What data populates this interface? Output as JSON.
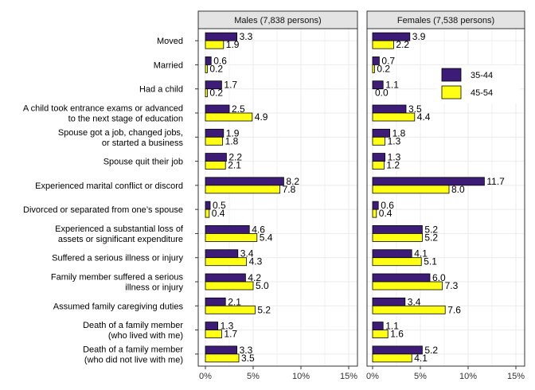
{
  "chart_data": {
    "type": "bar",
    "orientation": "horizontal",
    "categories": [
      [
        "Moved"
      ],
      [
        "Married"
      ],
      [
        "Had a child"
      ],
      [
        "A child took entrance exams or advanced",
        "to the next stage of education"
      ],
      [
        "Spouse got a job, changed jobs,",
        "or started a business"
      ],
      [
        "Spouse quit their job"
      ],
      [
        "Experienced marital conflict or discord"
      ],
      [
        "Divorced or separated from one’s spouse"
      ],
      [
        "Experienced a substantial loss of",
        "assets or significant expenditure"
      ],
      [
        "Suffered a serious illness or injury"
      ],
      [
        "Family member suffered a serious",
        "illness or injury"
      ],
      [
        "Assumed family caregiving duties"
      ],
      [
        "Death of a family member",
        "(who lived with me)"
      ],
      [
        "Death of a family member",
        "(who did not live with me)"
      ]
    ],
    "panels": [
      {
        "title": "Males (7,838 persons)",
        "series": [
          {
            "name": "35-44",
            "values": [
              3.3,
              0.6,
              1.7,
              2.5,
              1.9,
              2.2,
              8.2,
              0.5,
              4.6,
              3.4,
              4.2,
              2.1,
              1.3,
              3.3
            ]
          },
          {
            "name": "45-54",
            "values": [
              1.9,
              0.2,
              0.2,
              4.9,
              1.8,
              2.1,
              7.8,
              0.4,
              5.4,
              4.3,
              5.0,
              5.2,
              1.7,
              3.5
            ]
          }
        ]
      },
      {
        "title": "Females (7,538 persons)",
        "series": [
          {
            "name": "35-44",
            "values": [
              3.9,
              0.7,
              1.1,
              3.5,
              1.8,
              1.3,
              11.7,
              0.6,
              5.2,
              4.1,
              6.0,
              3.4,
              1.1,
              5.2
            ]
          },
          {
            "name": "45-54",
            "values": [
              2.2,
              0.2,
              0.0,
              4.4,
              1.3,
              1.2,
              8.0,
              0.4,
              5.2,
              5.1,
              7.3,
              7.6,
              1.6,
              4.1
            ]
          }
        ]
      }
    ],
    "legend": [
      "35-44",
      "45-54"
    ],
    "legend_position": "top-right of Females panel",
    "xlim": [
      0,
      15
    ],
    "xticks": [
      "0%",
      "5%",
      "10%",
      "15%"
    ],
    "grid": true,
    "colors": {
      "series_35_44": "#3d1c78",
      "series_45_54": "#ffff14",
      "panel_header": "#e3e3e3",
      "grid": "#ebebeb",
      "frame": "#333333"
    }
  }
}
